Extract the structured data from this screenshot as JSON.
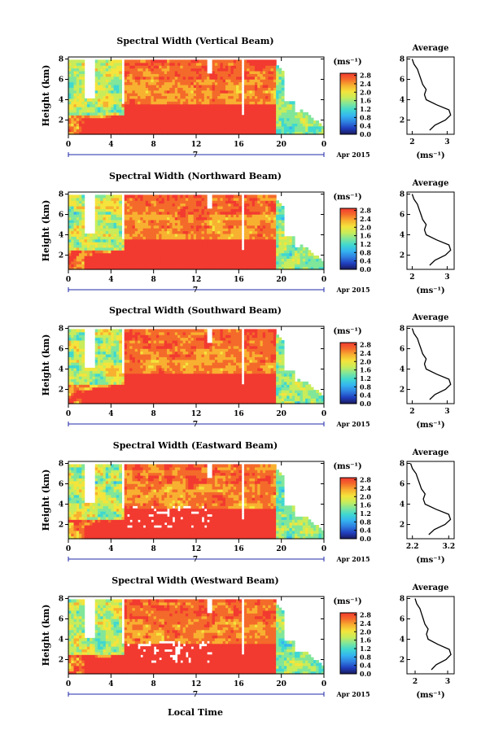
{
  "panels": [
    {
      "title": "Spectral Width (Vertical Beam)",
      "avg_xticks": [
        "2",
        "3"
      ],
      "avg_xlim": [
        1.85,
        3.2
      ]
    },
    {
      "title": "Spectral Width (Northward Beam)",
      "avg_xticks": [
        "2",
        "3"
      ],
      "avg_xlim": [
        1.85,
        3.2
      ]
    },
    {
      "title": "Spectral Width (Southward Beam)",
      "avg_xticks": [
        "2",
        "3"
      ],
      "avg_xlim": [
        1.85,
        3.2
      ]
    },
    {
      "title": "Spectral Width (Eastward Beam)",
      "avg_xticks": [
        "2.2",
        "3.2"
      ],
      "avg_xlim": [
        2.05,
        3.35
      ]
    },
    {
      "title": "Spectral Width (Westward Beam)",
      "avg_xticks": [
        "2",
        "3"
      ],
      "avg_xlim": [
        1.75,
        3.2
      ]
    }
  ],
  "ylabel": "Height (km)",
  "y_ticks": [
    "2",
    "4",
    "6",
    "8"
  ],
  "ylim_km": [
    0.6,
    8.2
  ],
  "x_ticks": [
    "0",
    "4",
    "8",
    "12",
    "16",
    "20",
    "0"
  ],
  "date_label": "7",
  "month_label": "Apr 2015",
  "xlabel": "Local Time",
  "colorbar_unit": "(ms⁻¹)",
  "colorbar_ticks": [
    "0.0",
    "0.4",
    "0.8",
    "1.2",
    "1.6",
    "2.0",
    "2.4",
    "2.8"
  ],
  "colorbar_range": [
    0.0,
    2.9
  ],
  "average_title": "Average",
  "average_xlabel": "(ms⁻¹)",
  "chart_data": {
    "type": "heatmap",
    "title": "Spectral Width",
    "x_label": "Local Time",
    "y_label": "Height (km)",
    "x_range_hours": [
      0,
      24
    ],
    "y_range_km": [
      0.6,
      8.2
    ],
    "color_range": [
      0.0,
      2.9
    ],
    "color_unit": "ms-1",
    "average_profile": {
      "height_km": [
        1.0,
        1.5,
        2.0,
        2.5,
        3.0,
        3.5,
        4.0,
        4.5,
        5.0,
        5.5,
        6.0,
        6.5,
        7.0,
        7.5,
        8.0
      ],
      "spectral_width": [
        2.5,
        2.65,
        2.95,
        3.1,
        3.05,
        2.7,
        2.4,
        2.35,
        2.4,
        2.3,
        2.25,
        2.2,
        2.15,
        2.05,
        2.0
      ]
    }
  },
  "colors": {
    "colormap": [
      "#1a1a5e",
      "#2040c0",
      "#2f7fe0",
      "#35b4f0",
      "#40d8d0",
      "#80e69a",
      "#c8ec5a",
      "#f4e43c",
      "#f8b030",
      "#f46a2a",
      "#f23a30"
    ]
  }
}
